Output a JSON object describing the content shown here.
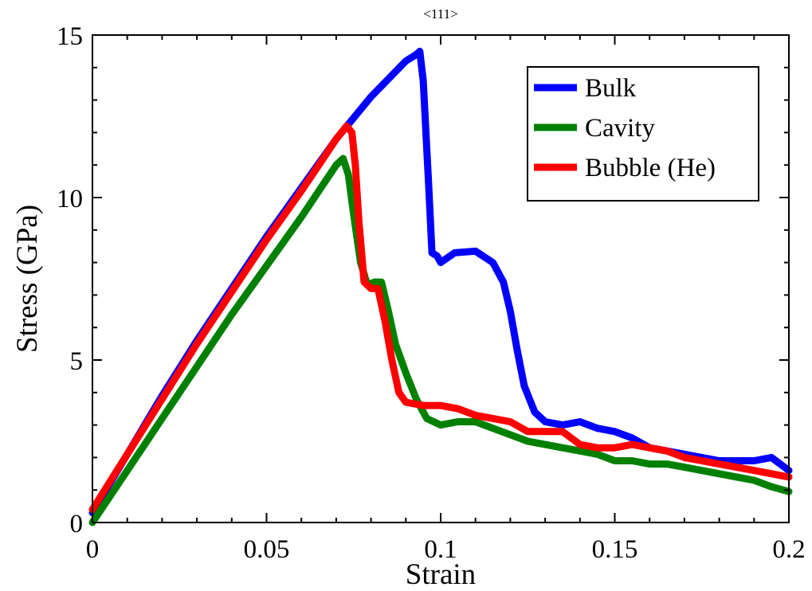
{
  "chart_data": {
    "type": "line",
    "title": "<111>",
    "xlabel": "Strain",
    "ylabel": "Stress (GPa)",
    "xlim": [
      0,
      0.2
    ],
    "ylim": [
      0,
      15
    ],
    "x_ticks": [
      0,
      0.05,
      0.1,
      0.15,
      0.2
    ],
    "x_tick_labels": [
      "0",
      "0.05",
      "0.1",
      "0.15",
      "0.2"
    ],
    "y_ticks": [
      0,
      5,
      10,
      15
    ],
    "y_tick_labels": [
      "0",
      "5",
      "10",
      "15"
    ],
    "grid": false,
    "legend_position": "top-right",
    "series": [
      {
        "name": "Bulk",
        "color": "#0000ff",
        "points": [
          [
            0,
            0.3
          ],
          [
            0.01,
            2.1
          ],
          [
            0.02,
            3.9
          ],
          [
            0.03,
            5.6
          ],
          [
            0.04,
            7.2
          ],
          [
            0.05,
            8.8
          ],
          [
            0.06,
            10.3
          ],
          [
            0.07,
            11.8
          ],
          [
            0.08,
            13.1
          ],
          [
            0.09,
            14.2
          ],
          [
            0.093,
            14.4
          ],
          [
            0.094,
            14.5
          ],
          [
            0.095,
            13.6
          ],
          [
            0.0965,
            10.5
          ],
          [
            0.0975,
            8.3
          ],
          [
            0.099,
            8.2
          ],
          [
            0.1,
            8.0
          ],
          [
            0.104,
            8.3
          ],
          [
            0.11,
            8.35
          ],
          [
            0.115,
            8.0
          ],
          [
            0.118,
            7.4
          ],
          [
            0.12,
            6.5
          ],
          [
            0.122,
            5.3
          ],
          [
            0.124,
            4.2
          ],
          [
            0.127,
            3.4
          ],
          [
            0.13,
            3.1
          ],
          [
            0.135,
            3.0
          ],
          [
            0.14,
            3.1
          ],
          [
            0.145,
            2.9
          ],
          [
            0.15,
            2.8
          ],
          [
            0.155,
            2.6
          ],
          [
            0.16,
            2.3
          ],
          [
            0.165,
            2.2
          ],
          [
            0.17,
            2.1
          ],
          [
            0.175,
            2.0
          ],
          [
            0.18,
            1.9
          ],
          [
            0.185,
            1.9
          ],
          [
            0.19,
            1.9
          ],
          [
            0.195,
            2.0
          ],
          [
            0.2,
            1.6
          ]
        ]
      },
      {
        "name": "Cavity",
        "color": "#008000",
        "points": [
          [
            0,
            0.0
          ],
          [
            0.01,
            1.6
          ],
          [
            0.02,
            3.2
          ],
          [
            0.03,
            4.8
          ],
          [
            0.04,
            6.4
          ],
          [
            0.05,
            7.9
          ],
          [
            0.06,
            9.4
          ],
          [
            0.065,
            10.2
          ],
          [
            0.07,
            11.0
          ],
          [
            0.072,
            11.2
          ],
          [
            0.0735,
            10.7
          ],
          [
            0.075,
            9.5
          ],
          [
            0.077,
            8.0
          ],
          [
            0.079,
            7.3
          ],
          [
            0.081,
            7.4
          ],
          [
            0.083,
            7.4
          ],
          [
            0.085,
            6.5
          ],
          [
            0.087,
            5.5
          ],
          [
            0.09,
            4.6
          ],
          [
            0.093,
            3.8
          ],
          [
            0.096,
            3.2
          ],
          [
            0.1,
            3.0
          ],
          [
            0.105,
            3.1
          ],
          [
            0.11,
            3.1
          ],
          [
            0.115,
            2.9
          ],
          [
            0.12,
            2.7
          ],
          [
            0.125,
            2.5
          ],
          [
            0.13,
            2.4
          ],
          [
            0.135,
            2.3
          ],
          [
            0.14,
            2.2
          ],
          [
            0.145,
            2.1
          ],
          [
            0.15,
            1.9
          ],
          [
            0.155,
            1.9
          ],
          [
            0.16,
            1.8
          ],
          [
            0.165,
            1.8
          ],
          [
            0.17,
            1.7
          ],
          [
            0.175,
            1.6
          ],
          [
            0.18,
            1.5
          ],
          [
            0.185,
            1.4
          ],
          [
            0.19,
            1.3
          ],
          [
            0.195,
            1.1
          ],
          [
            0.2,
            0.95
          ]
        ]
      },
      {
        "name": "Bubble (He)",
        "color": "#ff0000",
        "points": [
          [
            0,
            0.4
          ],
          [
            0.01,
            2.1
          ],
          [
            0.02,
            3.8
          ],
          [
            0.03,
            5.5
          ],
          [
            0.04,
            7.1
          ],
          [
            0.05,
            8.7
          ],
          [
            0.06,
            10.2
          ],
          [
            0.065,
            11.0
          ],
          [
            0.07,
            11.8
          ],
          [
            0.073,
            12.2
          ],
          [
            0.0745,
            12.0
          ],
          [
            0.0755,
            11.0
          ],
          [
            0.0765,
            9.3
          ],
          [
            0.078,
            7.4
          ],
          [
            0.08,
            7.2
          ],
          [
            0.082,
            7.2
          ],
          [
            0.084,
            6.2
          ],
          [
            0.086,
            5.0
          ],
          [
            0.088,
            4.0
          ],
          [
            0.09,
            3.7
          ],
          [
            0.095,
            3.6
          ],
          [
            0.1,
            3.6
          ],
          [
            0.105,
            3.5
          ],
          [
            0.11,
            3.3
          ],
          [
            0.115,
            3.2
          ],
          [
            0.12,
            3.1
          ],
          [
            0.125,
            2.8
          ],
          [
            0.13,
            2.8
          ],
          [
            0.135,
            2.8
          ],
          [
            0.14,
            2.4
          ],
          [
            0.145,
            2.3
          ],
          [
            0.15,
            2.3
          ],
          [
            0.155,
            2.4
          ],
          [
            0.16,
            2.3
          ],
          [
            0.165,
            2.2
          ],
          [
            0.17,
            2.0
          ],
          [
            0.175,
            1.9
          ],
          [
            0.18,
            1.8
          ],
          [
            0.185,
            1.7
          ],
          [
            0.19,
            1.6
          ],
          [
            0.195,
            1.5
          ],
          [
            0.2,
            1.4
          ]
        ]
      }
    ]
  }
}
